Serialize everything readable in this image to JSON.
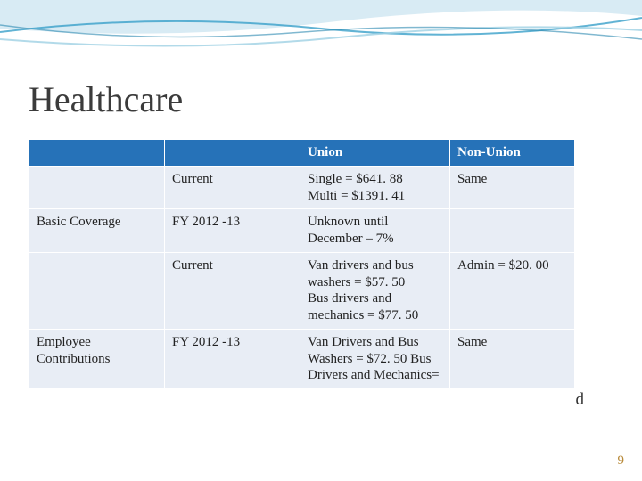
{
  "title": "Healthcare",
  "page_number": "9",
  "stray_char": "d",
  "wave": {
    "top_fill": "#c7e3ef",
    "line1_color": "#3aa0c9",
    "line2_color": "#9fd1e3",
    "line3_color": "#2b88b0"
  },
  "table": {
    "header_bg": "#2672b8",
    "header_fg": "#ffffff",
    "cell_bg": "#e8edf5",
    "headers": [
      "",
      "",
      "Union",
      "Non-Union"
    ],
    "rows": [
      {
        "label": "",
        "period": "Current",
        "union": "Single = $641. 88\nMulti = $1391. 41",
        "nonunion": "Same"
      },
      {
        "label": "Basic Coverage",
        "period": "FY 2012 -13",
        "union": "Unknown until December – 7%",
        "nonunion": ""
      },
      {
        "label": "",
        "period": "Current",
        "union": "Van drivers and bus washers = $57. 50\nBus drivers and mechanics = $77. 50",
        "nonunion": "Admin  = $20. 00"
      },
      {
        "label": "Employee Contributions",
        "period": "FY 2012 -13",
        "union": "Van Drivers and Bus Washers = $72. 50 Bus Drivers and Mechanics=",
        "nonunion": "Same"
      }
    ]
  }
}
